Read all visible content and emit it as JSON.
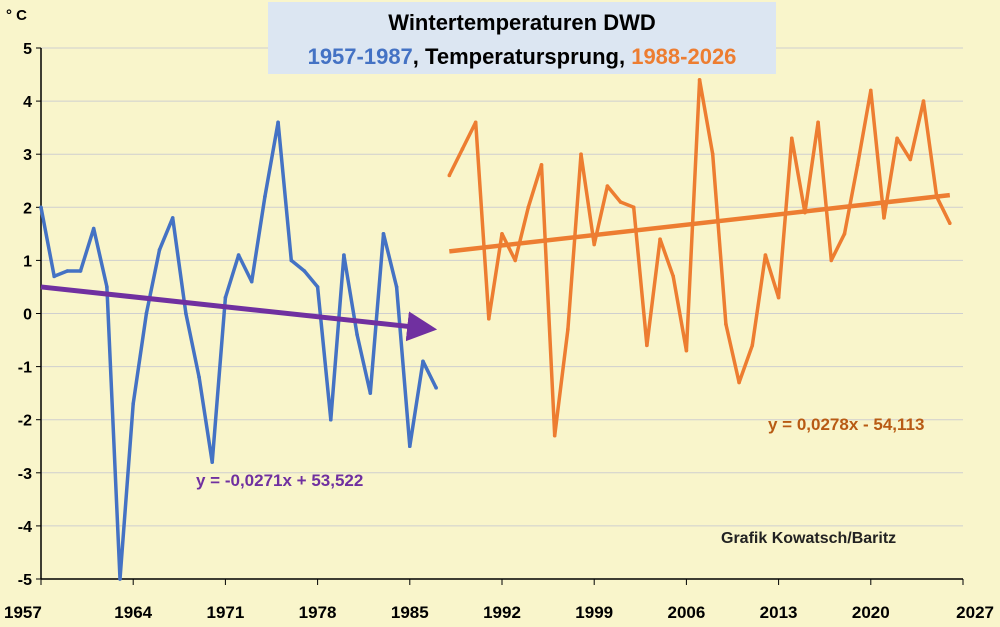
{
  "chart_data": {
    "type": "line",
    "title": {
      "line1": "Wintertemperaturen DWD",
      "line2_part1": "1957-1987",
      "line2_part2": ", Temperatursprung, ",
      "line2_part3": "1988-2026"
    },
    "ylabel": "° C",
    "xlim": [
      1957,
      2027
    ],
    "ylim": [
      -5,
      5
    ],
    "x_ticks": [
      1957,
      1964,
      1971,
      1978,
      1985,
      1992,
      1999,
      2006,
      2013,
      2020,
      2027
    ],
    "y_ticks": [
      5,
      4,
      3,
      2,
      1,
      0,
      -1,
      -2,
      -3,
      -4,
      -5
    ],
    "grid": "horizontal",
    "series": [
      {
        "color": "#4472c4",
        "x": [
          1957,
          1958,
          1959,
          1960,
          1961,
          1962,
          1963,
          1964,
          1965,
          1966,
          1967,
          1968,
          1969,
          1970,
          1971,
          1972,
          1973,
          1974,
          1975,
          1976,
          1977,
          1978,
          1979,
          1980,
          1981,
          1982,
          1983,
          1984,
          1985,
          1986,
          1987
        ],
        "values": [
          2.0,
          0.7,
          0.8,
          0.8,
          1.6,
          0.5,
          -5.0,
          -1.7,
          0.0,
          1.2,
          1.8,
          0.0,
          -1.2,
          -2.8,
          0.3,
          1.1,
          0.6,
          2.2,
          3.6,
          1.0,
          0.8,
          0.5,
          -2.0,
          1.1,
          -0.4,
          -1.5,
          1.5,
          0.5,
          -2.5,
          -0.9,
          -1.4
        ]
      },
      {
        "color": "#ed7d31",
        "x": [
          1988,
          1989,
          1990,
          1991,
          1992,
          1993,
          1994,
          1995,
          1996,
          1997,
          1998,
          1999,
          2000,
          2001,
          2002,
          2003,
          2004,
          2005,
          2006,
          2007,
          2008,
          2009,
          2010,
          2011,
          2012,
          2013,
          2014,
          2015,
          2016,
          2017,
          2018,
          2019,
          2020,
          2021,
          2022,
          2023,
          2024,
          2025,
          2026
        ],
        "values": [
          2.6,
          3.1,
          3.6,
          -0.1,
          1.5,
          1.0,
          2.0,
          2.8,
          -2.3,
          -0.3,
          3.0,
          1.3,
          2.4,
          2.1,
          2.0,
          -0.6,
          1.4,
          0.7,
          -0.7,
          4.4,
          3.0,
          -0.2,
          -1.3,
          -0.6,
          1.1,
          0.3,
          3.3,
          1.9,
          3.6,
          1.0,
          1.5,
          2.8,
          4.2,
          1.8,
          3.3,
          2.9,
          4.0,
          2.2,
          1.7
        ]
      }
    ],
    "trendlines": [
      {
        "equation": "y = -0,0271x + 53,522",
        "x_range": [
          1957,
          1987
        ],
        "y_range": [
          0.5,
          -0.3
        ],
        "color": "#7030a0",
        "arrow": true
      },
      {
        "equation": "y = 0,0278x - 54,113",
        "x_range": [
          1988,
          2026
        ],
        "y_range": [
          1.17,
          2.23
        ],
        "color": "#ed7d31",
        "arrow": false
      }
    ],
    "annotations": {
      "credit": "Grafik Kowatsch/Baritz"
    },
    "colors": {
      "background": "#f9f5cb",
      "title_box": "#dce6f2",
      "blue_text": "#4472c4",
      "orange_text": "#ed7d31",
      "purple": "#7030a0",
      "eq_orange": "#b85b14"
    }
  }
}
